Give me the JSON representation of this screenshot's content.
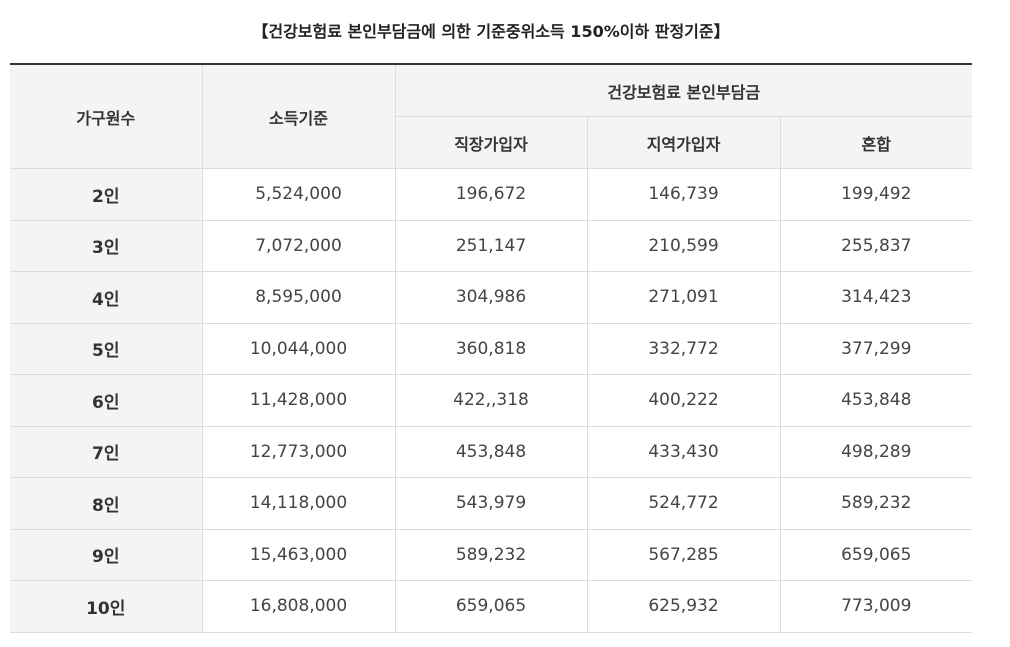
{
  "title": "【건강보험료 본인부담금에 의한 기준중위소득 150%이하 판정기준】",
  "table": {
    "headers": {
      "household": "가구원수",
      "income": "소득기준",
      "premium_group": "건강보험료 본인부담금",
      "employee": "직장가입자",
      "regional": "지역가입자",
      "mixed": "혼합"
    },
    "rows": [
      {
        "household": "2인",
        "income": "5,524,000",
        "employee": "196,672",
        "regional": "146,739",
        "mixed": "199,492"
      },
      {
        "household": "3인",
        "income": "7,072,000",
        "employee": "251,147",
        "regional": "210,599",
        "mixed": "255,837"
      },
      {
        "household": "4인",
        "income": "8,595,000",
        "employee": "304,986",
        "regional": "271,091",
        "mixed": "314,423"
      },
      {
        "household": "5인",
        "income": "10,044,000",
        "employee": "360,818",
        "regional": "332,772",
        "mixed": "377,299"
      },
      {
        "household": "6인",
        "income": "11,428,000",
        "employee": "422,,318",
        "regional": "400,222",
        "mixed": "453,848"
      },
      {
        "household": "7인",
        "income": "12,773,000",
        "employee": "453,848",
        "regional": "433,430",
        "mixed": "498,289"
      },
      {
        "household": "8인",
        "income": "14,118,000",
        "employee": "543,979",
        "regional": "524,772",
        "mixed": "589,232"
      },
      {
        "household": "9인",
        "income": "15,463,000",
        "employee": "589,232",
        "regional": "567,285",
        "mixed": "659,065"
      },
      {
        "household": "10인",
        "income": "16,808,000",
        "employee": "659,065",
        "regional": "625,932",
        "mixed": "773,009"
      }
    ]
  }
}
